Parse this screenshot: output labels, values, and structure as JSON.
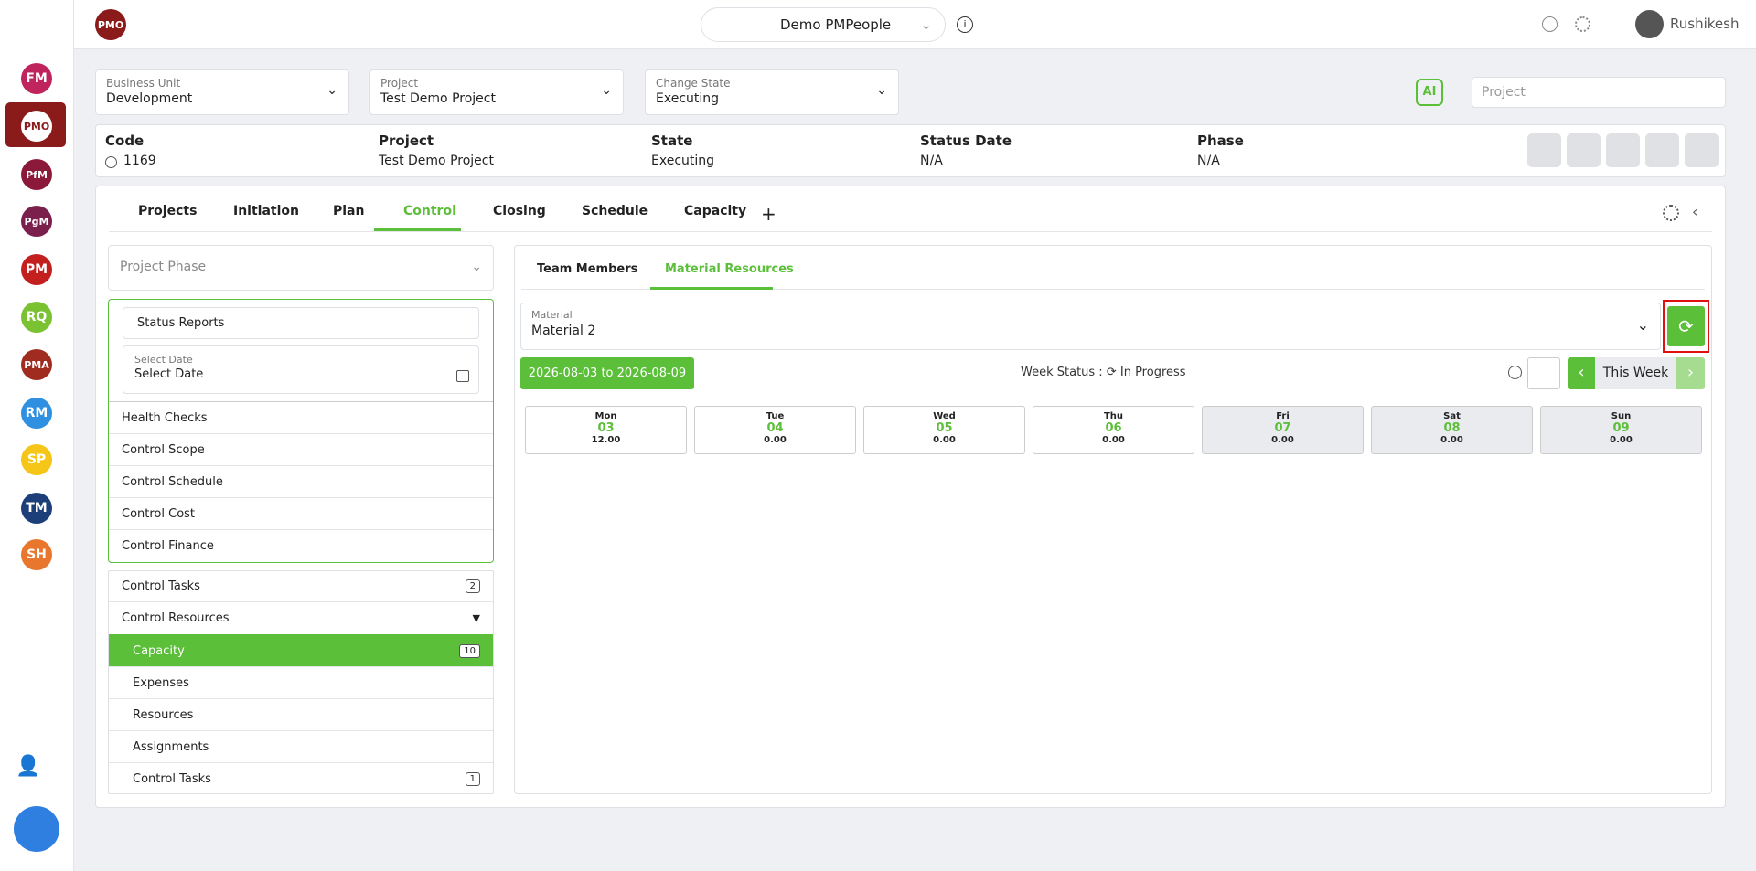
{
  "app": {
    "badge": "PMO",
    "workspace": "Demo PMPeople",
    "user": "Rushikesh"
  },
  "sidebar": [
    {
      "label": "FM",
      "color": "#c0245c"
    },
    {
      "label": "PMO",
      "color": "#8b1a1a"
    },
    {
      "label": "PfM",
      "color": "#8b1a3a"
    },
    {
      "label": "PgM",
      "color": "#7b1f4d"
    },
    {
      "label": "PM",
      "color": "#c41f1f"
    },
    {
      "label": "RQ",
      "color": "#7ac231"
    },
    {
      "label": "PMA",
      "color": "#a02b1f"
    },
    {
      "label": "RM",
      "color": "#2f8fe0"
    },
    {
      "label": "SP",
      "color": "#f5c518"
    },
    {
      "label": "TM",
      "color": "#1c3f7a"
    },
    {
      "label": "SH",
      "color": "#e8762c"
    }
  ],
  "filters": [
    {
      "label": "Business Unit",
      "value": "Development"
    },
    {
      "label": "Project",
      "value": "Test Demo Project"
    },
    {
      "label": "Change State",
      "value": "Executing"
    }
  ],
  "search_placeholder": "Project",
  "ai_icon": "AI",
  "info": {
    "headers": [
      "Code",
      "Project",
      "State",
      "Status Date",
      "Phase"
    ],
    "values": [
      "1169",
      "Test Demo Project",
      "Executing",
      "N/A",
      "N/A"
    ]
  },
  "tabs": [
    "Projects",
    "Initiation",
    "Plan",
    "Control",
    "Closing",
    "Schedule",
    "Capacity"
  ],
  "left_panel": {
    "phase_placeholder": "Project Phase",
    "status_reports": "Status Reports",
    "select_date_label": "Select Date",
    "select_date_value": "Select Date",
    "menu": [
      "Health Checks",
      "Control Scope",
      "Control Schedule",
      "Control Cost",
      "Control Finance"
    ],
    "control_tasks": {
      "label": "Control Tasks",
      "count": "2"
    },
    "control_resources": "Control Resources",
    "sub": [
      {
        "label": "Capacity",
        "count": "10"
      },
      {
        "label": "Expenses"
      },
      {
        "label": "Resources"
      },
      {
        "label": "Assignments"
      },
      {
        "label": "Control Tasks",
        "count": "1"
      }
    ]
  },
  "right_panel": {
    "subtabs": [
      "Team Members",
      "Material Resources"
    ],
    "material_label": "Material",
    "material_value": "Material 2",
    "date_range": "2026-08-03 to 2026-08-09",
    "week_status_label": "Week Status :",
    "week_status": "In Progress",
    "week_button": "This Week",
    "days": [
      {
        "day": "Mon",
        "date": "03",
        "value": "12.00"
      },
      {
        "day": "Tue",
        "date": "04",
        "value": "0.00"
      },
      {
        "day": "Wed",
        "date": "05",
        "value": "0.00"
      },
      {
        "day": "Thu",
        "date": "06",
        "value": "0.00"
      },
      {
        "day": "Fri",
        "date": "07",
        "value": "0.00"
      },
      {
        "day": "Sat",
        "date": "08",
        "value": "0.00"
      },
      {
        "day": "Sun",
        "date": "09",
        "value": "0.00"
      }
    ]
  }
}
